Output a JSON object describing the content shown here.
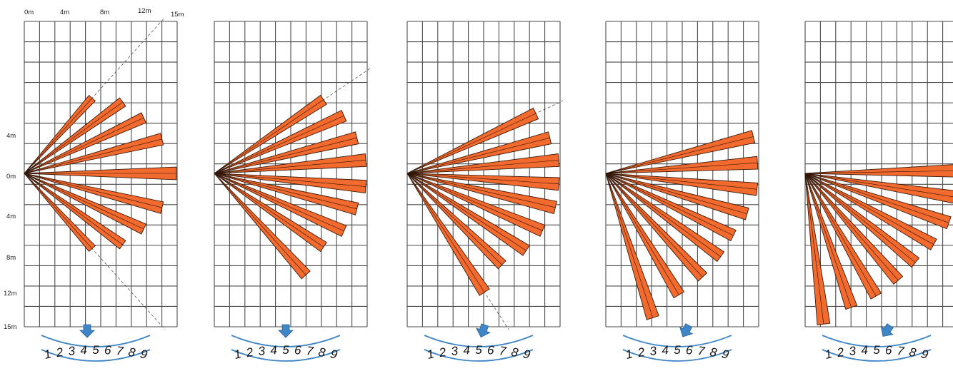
{
  "diagram": {
    "top_axis_labels": [
      "0m",
      "4m",
      "8m",
      "12m",
      "15m"
    ],
    "side_axis_labels": [
      "4m",
      "0m",
      "4m",
      "8m",
      "12m",
      "15m"
    ],
    "dial_digits": [
      "1",
      "2",
      "3",
      "4",
      "5",
      "6",
      "7",
      "8",
      "9"
    ],
    "colors": {
      "beam_fill": "#f26a2e",
      "beam_stroke": "#3a1a0a",
      "grid": "#4a4a4a",
      "dial_arc": "#3f86c8",
      "arrow": "#3f86c8"
    },
    "panels": [
      {
        "setting": "1",
        "beam_angles_deg": [
          -48,
          -36,
          -25,
          -14,
          0,
          14,
          25,
          36,
          48
        ],
        "beam_lengths_m": [
          10,
          12,
          13,
          14,
          15,
          14,
          13,
          12,
          10
        ],
        "guide_line": true
      },
      {
        "setting": "2",
        "beam_angles_deg": [
          -34,
          -24,
          -14,
          -5,
          5,
          14,
          24,
          34,
          48
        ],
        "beam_lengths_m": [
          13,
          14,
          14.5,
          15,
          15,
          14.5,
          14,
          13,
          13.5
        ]
      },
      {
        "setting": "3",
        "beam_angles_deg": [
          -25,
          -14,
          -5,
          4,
          13,
          23,
          33,
          44,
          57
        ],
        "beam_lengths_m": [
          14,
          14.5,
          15,
          15,
          15,
          14.5,
          14,
          13,
          14
        ]
      },
      {
        "setting": "4",
        "beam_angles_deg": [
          -14,
          -4,
          6,
          16,
          26,
          36,
          47,
          59,
          72
        ],
        "beam_lengths_m": [
          15,
          15,
          15,
          14.5,
          14,
          14,
          14,
          14,
          15
        ]
      },
      {
        "setting": "5",
        "beam_angles_deg": [
          -1,
          9,
          19,
          29,
          39,
          49,
          60,
          71,
          83
        ],
        "beam_lengths_m": [
          15,
          15,
          15,
          14.5,
          14,
          14,
          14,
          14,
          15
        ]
      }
    ]
  }
}
